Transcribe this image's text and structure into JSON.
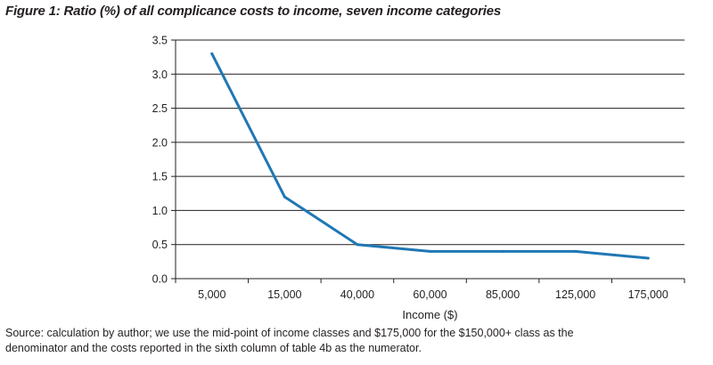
{
  "figure": {
    "title": "Figure 1: Ratio (%) of all complicance costs to income, seven income categories",
    "source_line1": "Source: calculation by author; we use the mid-point of income classes and $175,000 for the $150,000+ class as the",
    "source_line2": "denominator and the costs reported in the sixth column of table 4b as the numerator."
  },
  "chart_data": {
    "type": "line",
    "title": "",
    "xlabel": "Income ($)",
    "ylabel": "",
    "categories": [
      "5,000",
      "15,000",
      "40,000",
      "60,000",
      "85,000",
      "125,000",
      "175,000"
    ],
    "series": [
      {
        "values": [
          3.3,
          1.2,
          0.5,
          0.4,
          0.4,
          0.4,
          0.3
        ],
        "color": "#1f77b4"
      }
    ],
    "ylim": [
      0,
      3.5
    ],
    "yticks": [
      "0.0",
      "0.5",
      "1.0",
      "1.5",
      "2.0",
      "2.5",
      "3.0",
      "3.5"
    ],
    "grid": true,
    "gridColor": "#231f20"
  }
}
